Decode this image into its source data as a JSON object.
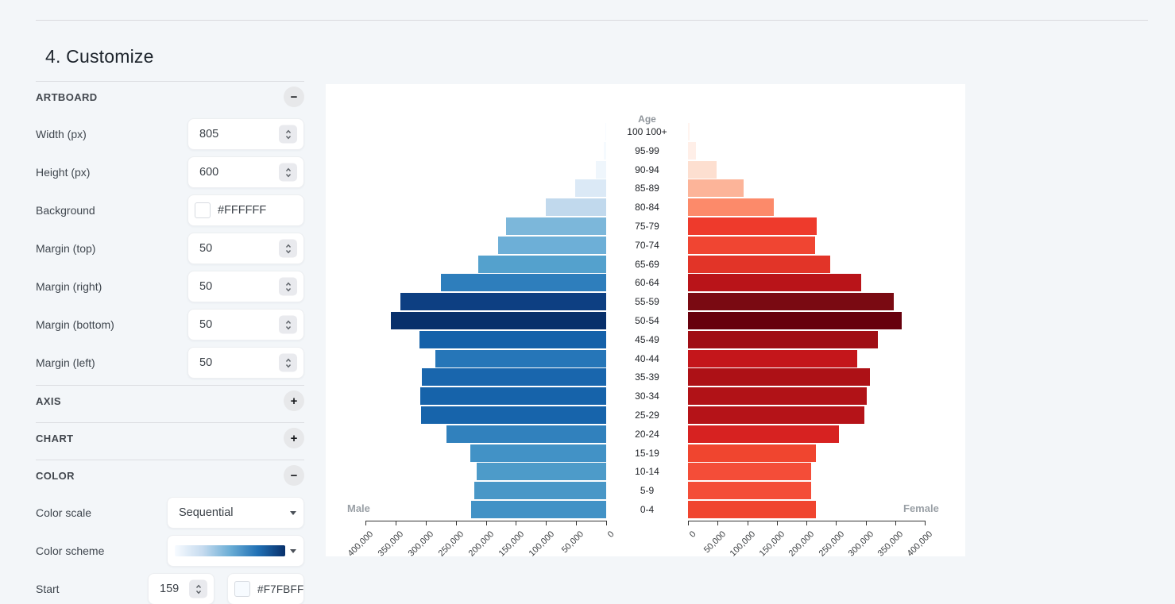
{
  "page": {
    "title": "4. Customize"
  },
  "panel": {
    "blocks": [
      {
        "kind": "section",
        "label": "ARTBOARD",
        "toggle": "−",
        "state": "expanded"
      },
      {
        "kind": "row",
        "control": "stepper",
        "label": "Width (px)",
        "value": "805"
      },
      {
        "kind": "row",
        "control": "stepper",
        "label": "Height (px)",
        "value": "600"
      },
      {
        "kind": "row",
        "control": "color",
        "label": "Background",
        "value": "#FFFFFF",
        "swatch": "#FFFFFF"
      },
      {
        "kind": "row",
        "control": "stepper",
        "label": "Margin (top)",
        "value": "50"
      },
      {
        "kind": "row",
        "control": "stepper",
        "label": "Margin (right)",
        "value": "50"
      },
      {
        "kind": "row",
        "control": "stepper",
        "label": "Margin (bottom)",
        "value": "50"
      },
      {
        "kind": "row",
        "control": "stepper",
        "label": "Margin (left)",
        "value": "50"
      },
      {
        "kind": "section",
        "label": "AXIS",
        "toggle": "+",
        "state": "collapsed"
      },
      {
        "kind": "section",
        "label": "CHART",
        "toggle": "+",
        "state": "collapsed"
      },
      {
        "kind": "section",
        "label": "COLOR",
        "toggle": "−",
        "state": "expanded"
      },
      {
        "kind": "row",
        "control": "select",
        "label": "Color scale",
        "value": "Sequential"
      },
      {
        "kind": "row",
        "control": "gradient",
        "label": "Color scheme",
        "gradient": [
          "#f7fbff",
          "#c6dbef",
          "#6baed6",
          "#2171b5",
          "#08306b"
        ]
      },
      {
        "kind": "row",
        "control": "stepper-color",
        "label": "Start",
        "value": "159",
        "swatch": "#F7FBFF",
        "swatch_label": "#F7FBFF"
      }
    ]
  },
  "chart_data": {
    "type": "bar",
    "subtype": "population-pyramid",
    "age_axis_title": "Age",
    "top_row_display": "100 100+",
    "categories": [
      "100+",
      "95-99",
      "90-94",
      "85-89",
      "80-84",
      "75-79",
      "70-74",
      "65-69",
      "60-64",
      "55-59",
      "50-54",
      "45-49",
      "40-44",
      "35-39",
      "30-34",
      "25-29",
      "20-24",
      "15-19",
      "10-14",
      "5-9",
      "0-4"
    ],
    "series": [
      {
        "name": "Male",
        "values": [
          1000,
          4500,
          17600,
          51100,
          100700,
          166700,
          179100,
          212500,
          274100,
          341500,
          358100,
          310600,
          284200,
          306300,
          308900,
          308000,
          265300,
          225700,
          215200,
          219100,
          224800
        ],
        "colors": [
          "#f7fbff",
          "#f5fafe",
          "#eff6fc",
          "#dbe9f6",
          "#c1d9ed",
          "#7cb7da",
          "#6dafd7",
          "#54a1cd",
          "#2e7ebc",
          "#0d3f82",
          "#08306b",
          "#1561a9",
          "#2676b8",
          "#1966ad",
          "#1663aa",
          "#1764ab",
          "#3181bd",
          "#4292c6",
          "#4d9bc9",
          "#4997c7",
          "#4292c6"
        ]
      },
      {
        "name": "Female",
        "values": [
          3100,
          13000,
          47900,
          93500,
          144500,
          217000,
          214300,
          239800,
          292100,
          347100,
          361000,
          320300,
          285400,
          306900,
          302400,
          297500,
          255400,
          215600,
          208400,
          208400,
          215600
        ],
        "colors": [
          "#fff4ef",
          "#ffefe8",
          "#fddfd0",
          "#fcb499",
          "#fc8a6a",
          "#ee3a2c",
          "#f04532",
          "#e23428",
          "#b91419",
          "#7a0a12",
          "#67000d",
          "#a00e15",
          "#c4161b",
          "#ad1116",
          "#b11217",
          "#b51318",
          "#d72221",
          "#f0452f",
          "#f44d38",
          "#f44d38",
          "#f0452f"
        ]
      }
    ],
    "left_axis_label": "Male",
    "right_axis_label": "Female",
    "left_ticks": [
      "400,000",
      "350,000",
      "300,000",
      "250,000",
      "200,000",
      "150,000",
      "100,000",
      "50,000",
      "0"
    ],
    "right_ticks": [
      "0",
      "50,000",
      "100,000",
      "150,000",
      "200,000",
      "250,000",
      "300,000",
      "350,000",
      "400,000"
    ],
    "xlim": [
      0,
      400000
    ],
    "grid": false
  }
}
